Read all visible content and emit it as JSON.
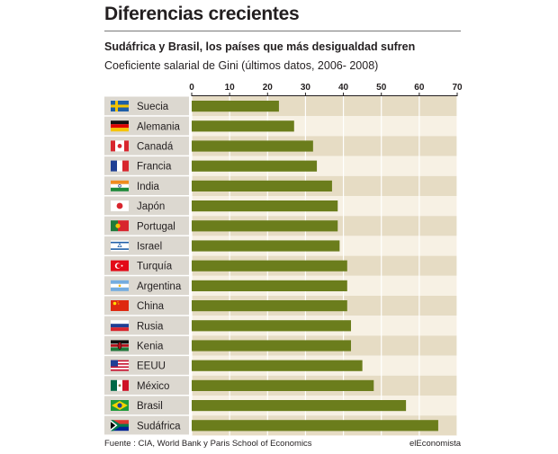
{
  "header": {
    "title": "Diferencias crecientes",
    "subtitle": "Sudáfrica y Brasil, los países que más desigualdad sufren",
    "description": "Coeficiente salarial de Gini (últimos datos, 2006- 2008)"
  },
  "footer": {
    "source": "Fuente : CIA, World Bank y Paris School of Economics",
    "brand": "elEconomista"
  },
  "colors": {
    "bar": "#6b7d1c",
    "row_light": "#f7f1e4",
    "row_dark": "#e6dcc4",
    "label_bg": "#dcd8d0",
    "gridline": "#ffffff"
  },
  "chart_data": {
    "type": "bar",
    "orientation": "horizontal",
    "title": "",
    "xlabel": "",
    "ylabel": "",
    "xlim": [
      0,
      70
    ],
    "ticks": [
      0,
      10,
      20,
      30,
      40,
      50,
      60,
      70
    ],
    "tick_position": "top",
    "grid": true,
    "categories": [
      "Suecia",
      "Alemania",
      "Canadá",
      "Francia",
      "India",
      "Japón",
      "Portugal",
      "Israel",
      "Turquía",
      "Argentina",
      "China",
      "Rusia",
      "Kenia",
      "EEUU",
      "México",
      "Brasil",
      "Sudáfrica"
    ],
    "flags": [
      "flag-sweden",
      "flag-germany",
      "flag-canada",
      "flag-france",
      "flag-india",
      "flag-japan",
      "flag-portugal",
      "flag-israel",
      "flag-turkey",
      "flag-argentina",
      "flag-china",
      "flag-russia",
      "flag-kenya",
      "flag-usa",
      "flag-mexico",
      "flag-brazil",
      "flag-south-africa"
    ],
    "values": [
      23,
      27,
      32,
      33,
      37,
      38.5,
      38.5,
      39,
      41,
      41,
      41,
      42,
      42,
      45,
      48,
      56.5,
      65
    ]
  }
}
